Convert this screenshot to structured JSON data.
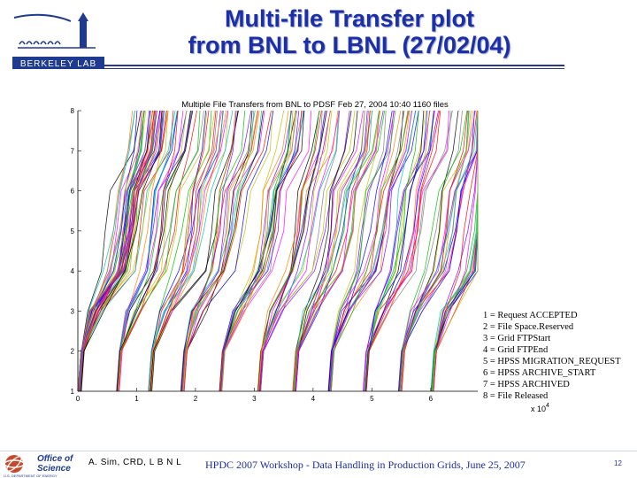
{
  "slide": {
    "title_line1": "Multi-file Transfer plot",
    "title_line2": "from BNL to LBNL (27/02/04)",
    "logo_text": "BERKELEY LAB",
    "author": "A. Sim, CRD, L B N L",
    "event": "HPDC 2007 Workshop - Data Handling in Production Grids, June 25, 2007",
    "page_number": "12",
    "footer_logo_line1": "Office of",
    "footer_logo_line2": "Science",
    "footer_logo_line3": "U.S. DEPARTMENT OF ENERGY",
    "colors": {
      "title": "#1a2fa8",
      "logo_blue": "#1f3b8f"
    }
  },
  "chart_data": {
    "type": "line",
    "title": "Multiple File Transfers from BNL to PDSF   Feb 27, 2004 10:40   1160 files",
    "x_ticks": [
      "0",
      "1",
      "2",
      "3",
      "4",
      "5",
      "6"
    ],
    "x_multiplier": "x 10^4",
    "xlim": [
      0,
      68000
    ],
    "y_ticks": [
      "1",
      "2",
      "3",
      "4",
      "5",
      "6",
      "7",
      "8"
    ],
    "ylim": [
      1,
      8
    ],
    "file_count": 1160,
    "legend": [
      "1 = Request ACCEPTED",
      "2 = File Space.Reserved",
      "3 = Grid FTPStart",
      "4 = Grid FTPEnd",
      "5 = HPSS MIGRATION_REQUEST",
      "6 = HPSS ARCHIVE_START",
      "7 = HPSS ARCHIVED",
      "8 = File Released"
    ],
    "batch_start_times": [
      0,
      6500,
      12000,
      17500,
      24000,
      30500,
      36500,
      42500,
      48500,
      54500,
      60000
    ],
    "series_colors": [
      "#ff00ff",
      "#00c000",
      "#0000ff",
      "#ff0000",
      "#00c0c0",
      "#c0c000",
      "#000000",
      "#ff8000",
      "#8000ff",
      "#808080"
    ]
  }
}
